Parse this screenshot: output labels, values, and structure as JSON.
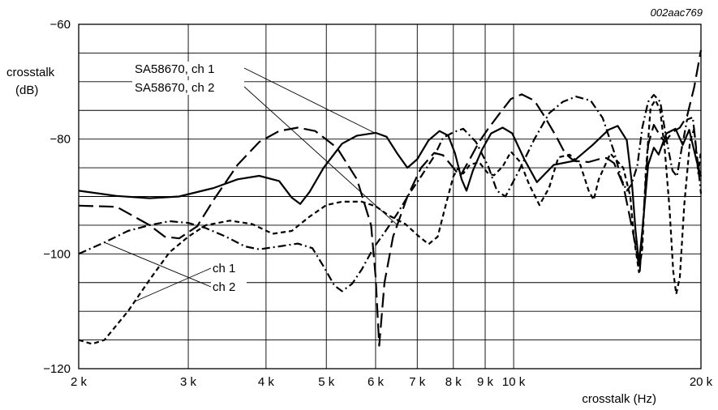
{
  "chart_data": {
    "type": "line",
    "figure_code": "002aac769",
    "title": "",
    "xlabel": "crosstalk (Hz)",
    "ylabel_lines": [
      "crosstalk",
      "(dB)"
    ],
    "x_scale": "log",
    "xlim": [
      2000,
      20000
    ],
    "ylim": [
      -120,
      -60
    ],
    "grid": true,
    "x_ticks": [
      {
        "value": 2000,
        "label": "2 k"
      },
      {
        "value": 3000,
        "label": "3 k"
      },
      {
        "value": 4000,
        "label": "4 k"
      },
      {
        "value": 5000,
        "label": "5 k"
      },
      {
        "value": 6000,
        "label": "6 k"
      },
      {
        "value": 7000,
        "label": "7 k"
      },
      {
        "value": 8000,
        "label": "8 k"
      },
      {
        "value": 9000,
        "label": "9 k"
      },
      {
        "value": 10000,
        "label": "10 k"
      },
      {
        "value": 20000,
        "label": "20 k"
      }
    ],
    "y_ticks": [
      {
        "value": -60,
        "label": "−60"
      },
      {
        "value": -80,
        "label": "−80"
      },
      {
        "value": -100,
        "label": "−100"
      },
      {
        "value": -120,
        "label": "−120"
      }
    ],
    "series": [
      {
        "name": "SA58670, ch 1",
        "style": "solid",
        "points": [
          [
            2000,
            -89
          ],
          [
            2300,
            -89.9
          ],
          [
            2600,
            -90.3
          ],
          [
            2900,
            -90
          ],
          [
            3300,
            -88.5
          ],
          [
            3600,
            -87
          ],
          [
            3900,
            -86.4
          ],
          [
            4200,
            -87.3
          ],
          [
            4400,
            -90.2
          ],
          [
            4540,
            -91.3
          ],
          [
            4700,
            -89.2
          ],
          [
            4950,
            -85
          ],
          [
            5300,
            -80.8
          ],
          [
            5600,
            -79.4
          ],
          [
            6000,
            -78.9
          ],
          [
            6250,
            -79.6
          ],
          [
            6500,
            -82.5
          ],
          [
            6750,
            -85
          ],
          [
            7000,
            -83.5
          ],
          [
            7300,
            -80.2
          ],
          [
            7600,
            -78.6
          ],
          [
            7850,
            -79.4
          ],
          [
            8050,
            -82.5
          ],
          [
            8250,
            -87
          ],
          [
            8400,
            -89
          ],
          [
            8600,
            -85.5
          ],
          [
            8900,
            -81.8
          ],
          [
            9200,
            -79
          ],
          [
            9600,
            -78
          ],
          [
            9950,
            -79
          ],
          [
            10400,
            -83.5
          ],
          [
            10900,
            -87.5
          ],
          [
            11600,
            -84.5
          ],
          [
            12500,
            -83.8
          ],
          [
            13400,
            -81
          ],
          [
            14200,
            -78.4
          ],
          [
            14700,
            -77.7
          ],
          [
            15200,
            -80.2
          ],
          [
            15500,
            -88
          ],
          [
            15700,
            -96
          ],
          [
            15900,
            -101.5
          ],
          [
            16100,
            -96
          ],
          [
            16450,
            -84.5
          ],
          [
            16800,
            -81.5
          ],
          [
            17100,
            -82.7
          ],
          [
            17600,
            -79
          ],
          [
            18200,
            -78.2
          ],
          [
            18700,
            -81
          ],
          [
            19150,
            -78.4
          ],
          [
            19700,
            -84
          ],
          [
            20000,
            -86.5
          ]
        ]
      },
      {
        "name": "SA58670, ch 2",
        "style": "long-dash",
        "points": [
          [
            2000,
            -91.6
          ],
          [
            2300,
            -91.8
          ],
          [
            2600,
            -95
          ],
          [
            2750,
            -97
          ],
          [
            2900,
            -97.3
          ],
          [
            3100,
            -95.2
          ],
          [
            3300,
            -90.5
          ],
          [
            3600,
            -84.5
          ],
          [
            3900,
            -80.5
          ],
          [
            4200,
            -78.6
          ],
          [
            4500,
            -78
          ],
          [
            4800,
            -78.6
          ],
          [
            5200,
            -81.5
          ],
          [
            5600,
            -87
          ],
          [
            5900,
            -95
          ],
          [
            6000,
            -104
          ],
          [
            6080,
            -116
          ],
          [
            6200,
            -105
          ],
          [
            6400,
            -97
          ],
          [
            6750,
            -90
          ],
          [
            7100,
            -85
          ],
          [
            7450,
            -82.4
          ],
          [
            7700,
            -82.8
          ],
          [
            8000,
            -85
          ],
          [
            8200,
            -86.5
          ],
          [
            8500,
            -83.5
          ],
          [
            8800,
            -80.5
          ],
          [
            9100,
            -78.2
          ],
          [
            9500,
            -75.5
          ],
          [
            9900,
            -73
          ],
          [
            10300,
            -72.2
          ],
          [
            10800,
            -73.3
          ],
          [
            11200,
            -76
          ],
          [
            11700,
            -79.5
          ],
          [
            12100,
            -82.5
          ],
          [
            12500,
            -83.8
          ],
          [
            13200,
            -84
          ],
          [
            13700,
            -83.5
          ],
          [
            14100,
            -83.3
          ],
          [
            14500,
            -84.2
          ],
          [
            15000,
            -88
          ],
          [
            15400,
            -94
          ],
          [
            15700,
            -98.5
          ],
          [
            15950,
            -103
          ],
          [
            16200,
            -92
          ],
          [
            16450,
            -81
          ],
          [
            16800,
            -77.5
          ],
          [
            17200,
            -79.5
          ],
          [
            17500,
            -80.5
          ],
          [
            18000,
            -78.8
          ],
          [
            18500,
            -78
          ],
          [
            19000,
            -76
          ],
          [
            19500,
            -71
          ],
          [
            20000,
            -64.5
          ]
        ]
      },
      {
        "name": "ch 1",
        "style": "short-dash",
        "points": [
          [
            2000,
            -115
          ],
          [
            2100,
            -115.7
          ],
          [
            2200,
            -115
          ],
          [
            2400,
            -110
          ],
          [
            2600,
            -104.5
          ],
          [
            2800,
            -99.7
          ],
          [
            3000,
            -97
          ],
          [
            3200,
            -95
          ],
          [
            3500,
            -94.2
          ],
          [
            3800,
            -94.8
          ],
          [
            4100,
            -96.5
          ],
          [
            4400,
            -96
          ],
          [
            4700,
            -93.5
          ],
          [
            5000,
            -91.5
          ],
          [
            5300,
            -90.9
          ],
          [
            5700,
            -90.9
          ],
          [
            6000,
            -91.7
          ],
          [
            6300,
            -93.3
          ],
          [
            6700,
            -94.8
          ],
          [
            7050,
            -97
          ],
          [
            7300,
            -98.3
          ],
          [
            7550,
            -97
          ],
          [
            7800,
            -91
          ],
          [
            8000,
            -86.5
          ],
          [
            8150,
            -85
          ],
          [
            8300,
            -86
          ],
          [
            8500,
            -84.5
          ],
          [
            8800,
            -84
          ],
          [
            9100,
            -86
          ],
          [
            9300,
            -86.3
          ],
          [
            9600,
            -84.8
          ],
          [
            9900,
            -82.2
          ],
          [
            10250,
            -84
          ],
          [
            10600,
            -88
          ],
          [
            11000,
            -91.5
          ],
          [
            11400,
            -88.5
          ],
          [
            11800,
            -83.2
          ],
          [
            12300,
            -82.7
          ],
          [
            12800,
            -84.5
          ],
          [
            13200,
            -89
          ],
          [
            13450,
            -90.6
          ],
          [
            13700,
            -87
          ],
          [
            14300,
            -82.5
          ],
          [
            15000,
            -85
          ],
          [
            15400,
            -90
          ],
          [
            15600,
            -97
          ],
          [
            15900,
            -103.2
          ],
          [
            16100,
            -99
          ],
          [
            16300,
            -86
          ],
          [
            16600,
            -74.5
          ],
          [
            16900,
            -73.2
          ],
          [
            17200,
            -75
          ],
          [
            17500,
            -82
          ],
          [
            17800,
            -92
          ],
          [
            18050,
            -103
          ],
          [
            18250,
            -107
          ],
          [
            18500,
            -104
          ],
          [
            18800,
            -91.5
          ],
          [
            19200,
            -80.5
          ],
          [
            19500,
            -78.2
          ],
          [
            19800,
            -86
          ],
          [
            20000,
            -82
          ]
        ]
      },
      {
        "name": "ch 2",
        "style": "dash-dot",
        "points": [
          [
            2000,
            -100
          ],
          [
            2200,
            -98
          ],
          [
            2400,
            -96
          ],
          [
            2600,
            -95
          ],
          [
            2800,
            -94.3
          ],
          [
            3000,
            -94.6
          ],
          [
            3200,
            -95.5
          ],
          [
            3450,
            -97
          ],
          [
            3700,
            -98.7
          ],
          [
            3900,
            -99.2
          ],
          [
            4200,
            -98.7
          ],
          [
            4500,
            -98.2
          ],
          [
            4750,
            -99
          ],
          [
            4950,
            -102.2
          ],
          [
            5150,
            -105.5
          ],
          [
            5300,
            -106.5
          ],
          [
            5500,
            -105.2
          ],
          [
            5700,
            -102.7
          ],
          [
            5950,
            -99
          ],
          [
            6200,
            -96.3
          ],
          [
            6500,
            -93
          ],
          [
            6800,
            -89.5
          ],
          [
            7100,
            -86.5
          ],
          [
            7450,
            -83
          ],
          [
            7700,
            -79.8
          ],
          [
            8000,
            -78.8
          ],
          [
            8300,
            -78.2
          ],
          [
            8700,
            -80.5
          ],
          [
            9100,
            -84.7
          ],
          [
            9400,
            -89
          ],
          [
            9700,
            -90
          ],
          [
            10200,
            -85.5
          ],
          [
            10800,
            -80
          ],
          [
            11400,
            -75.5
          ],
          [
            12000,
            -73.5
          ],
          [
            12600,
            -72.6
          ],
          [
            13300,
            -73.3
          ],
          [
            13900,
            -76.3
          ],
          [
            14500,
            -82.2
          ],
          [
            14900,
            -87
          ],
          [
            15200,
            -89
          ],
          [
            15450,
            -88
          ],
          [
            15800,
            -84.7
          ],
          [
            16100,
            -78
          ],
          [
            16450,
            -73.5
          ],
          [
            16800,
            -72.3
          ],
          [
            17200,
            -73.5
          ],
          [
            17600,
            -80
          ],
          [
            18000,
            -85.5
          ],
          [
            18300,
            -86.5
          ],
          [
            18600,
            -82
          ],
          [
            19000,
            -76.6
          ],
          [
            19400,
            -76.2
          ],
          [
            19800,
            -85
          ],
          [
            20000,
            -89.5
          ]
        ]
      }
    ],
    "annotations": [
      {
        "id": "ann-sa58670-ch1",
        "text": "SA58670, ch 1",
        "points_to": "SA58670, ch 1"
      },
      {
        "id": "ann-sa58670-ch2",
        "text": "SA58670, ch 2",
        "points_to": "SA58670, ch 2"
      },
      {
        "id": "ann-ch1",
        "text": "ch 1",
        "points_to": "ch 1"
      },
      {
        "id": "ann-ch2",
        "text": "ch 2",
        "points_to": "ch 2"
      }
    ]
  }
}
